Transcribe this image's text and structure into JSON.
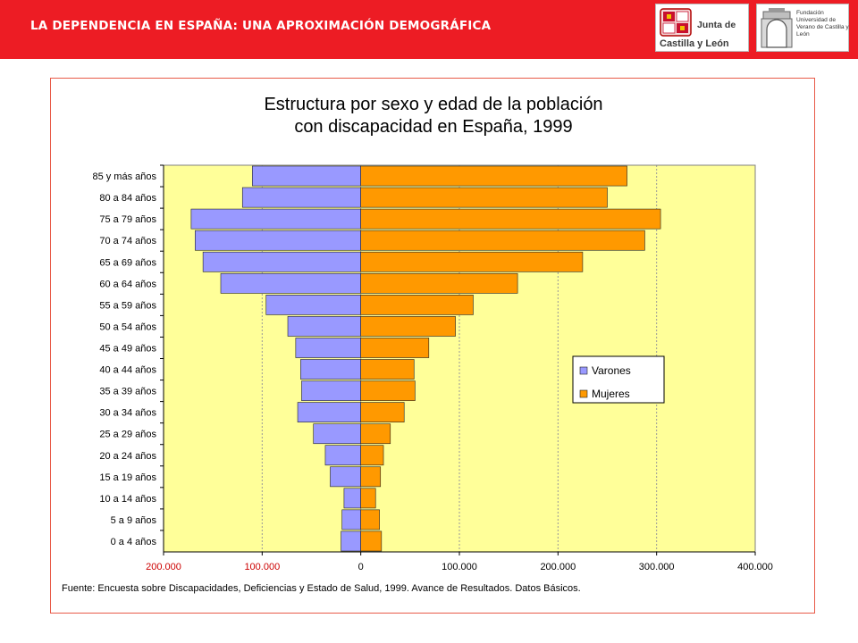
{
  "header": {
    "title": "LA DEPENDENCIA EN ESPAÑA: UNA APROXIMACIÓN DEMOGRÁFICA",
    "logo_jcyl_line1": "Junta de",
    "logo_jcyl_line2": "Castilla y León",
    "logo_fund_text": "Fundación Universidad de Verano de Castilla y León"
  },
  "chart_data": {
    "type": "bar",
    "orientation": "horizontal",
    "title_line1": "Estructura por sexo y edad de la población",
    "title_line2": "con discapacidad en España, 1999",
    "categories": [
      "85 y más años",
      "80 a 84 años",
      "75 a 79 años ",
      "70 a 74 años",
      "65 a 69 años",
      "60 a 64 años",
      "55 a 59 años",
      "50 a 54 años",
      "45 a 49 años",
      "40 a 44 años",
      "35 a 39 años",
      "30 a 34 años",
      "25 a 29 años",
      "20 a 24 años",
      "15 a 19 años",
      "10 a 14 años",
      "5 a 9 años",
      "0 a 4 años"
    ],
    "series": [
      {
        "name": "Varones",
        "color": "#9999ff",
        "values": [
          110000,
          120000,
          172000,
          168000,
          160000,
          142000,
          96000,
          74000,
          66000,
          61000,
          60000,
          64000,
          48000,
          36000,
          31000,
          17000,
          19000,
          20000
        ]
      },
      {
        "name": "Mujeres",
        "color": "#ff9900",
        "values": [
          270000,
          250000,
          304000,
          288000,
          225000,
          159000,
          114000,
          96000,
          69000,
          54000,
          55000,
          44000,
          30000,
          23000,
          20000,
          15000,
          19000,
          21000
        ]
      }
    ],
    "xlim": [
      -200000,
      400000
    ],
    "x_ticks": [
      -200000,
      -100000,
      0,
      100000,
      200000,
      300000,
      400000
    ],
    "x_tick_labels": [
      "200.000",
      "100.000",
      "0",
      "100.000",
      "200.000",
      "300.000",
      "400.000"
    ],
    "plot_background": "#ffff99",
    "grid": true,
    "legend_position": "right",
    "source": "Fuente: Encuesta sobre Discapacidades, Deficiencias y Estado de Salud, 1999. Avance de Resultados. Datos Básicos."
  }
}
